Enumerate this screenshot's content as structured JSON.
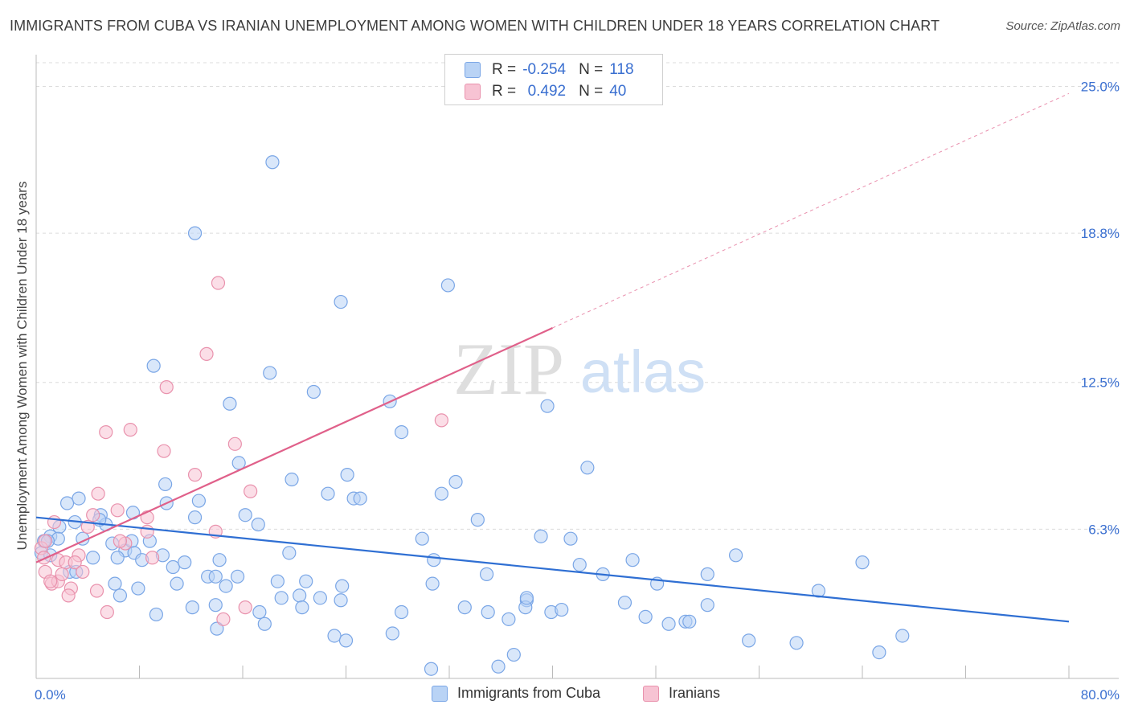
{
  "header": {
    "title": "IMMIGRANTS FROM CUBA VS IRANIAN UNEMPLOYMENT AMONG WOMEN WITH CHILDREN UNDER 18 YEARS CORRELATION CHART",
    "source": "Source: ZipAtlas.com"
  },
  "legend_stats": {
    "row1": {
      "r_label": "R =",
      "r_value": "-0.254",
      "n_label": "N =",
      "n_value": "118"
    },
    "row2": {
      "r_label": "R =",
      "r_value": "0.492",
      "n_label": "N =",
      "n_value": "40"
    }
  },
  "legend_series": {
    "s1": "Immigrants from Cuba",
    "s2": "Iranians"
  },
  "watermark": {
    "zip": "ZIP",
    "atlas": "atlas"
  },
  "colors": {
    "cuba_fill": "#b9d3f5",
    "cuba_stroke": "#7aa6e6",
    "cuba_line": "#2f6fd3",
    "iran_fill": "#f7c3d3",
    "iran_stroke": "#e992ad",
    "iran_line": "#e0608a",
    "tick_label": "#3a6fd0",
    "grid": "#dcdcdc"
  },
  "chart_data": {
    "type": "scatter",
    "title": "IMMIGRANTS FROM CUBA VS IRANIAN UNEMPLOYMENT AMONG WOMEN WITH CHILDREN UNDER 18 YEARS CORRELATION CHART",
    "xlabel": "",
    "ylabel": "Unemployment Among Women with Children Under 18 years",
    "xlim": [
      0,
      80
    ],
    "ylim": [
      0,
      26
    ],
    "x_tick_labels": [
      "0.0%",
      "80.0%"
    ],
    "y_ticks": [
      6.3,
      12.5,
      18.8,
      25.0
    ],
    "y_tick_labels": [
      "6.3%",
      "12.5%",
      "18.8%",
      "25.0%"
    ],
    "grid": "horizontal dashed",
    "legend": "top-center",
    "series": [
      {
        "name": "Immigrants from Cuba",
        "r": -0.254,
        "n": 118,
        "trend": {
          "x": [
            0,
            80
          ],
          "y": [
            6.8,
            2.4
          ]
        },
        "points": [
          [
            18.3,
            21.8
          ],
          [
            12.3,
            18.8
          ],
          [
            23.6,
            15.9
          ],
          [
            31.9,
            16.6
          ],
          [
            9.1,
            13.2
          ],
          [
            18.1,
            12.9
          ],
          [
            21.5,
            12.1
          ],
          [
            15.0,
            11.6
          ],
          [
            27.4,
            11.7
          ],
          [
            39.6,
            11.5
          ],
          [
            28.3,
            10.4
          ],
          [
            15.7,
            9.1
          ],
          [
            19.8,
            8.4
          ],
          [
            24.1,
            8.6
          ],
          [
            32.5,
            8.3
          ],
          [
            42.7,
            8.9
          ],
          [
            10.0,
            8.2
          ],
          [
            22.6,
            7.8
          ],
          [
            24.6,
            7.6
          ],
          [
            31.4,
            7.8
          ],
          [
            3.3,
            7.6
          ],
          [
            2.4,
            7.4
          ],
          [
            10.1,
            7.4
          ],
          [
            12.6,
            7.5
          ],
          [
            7.5,
            7.0
          ],
          [
            5.0,
            6.9
          ],
          [
            5.4,
            6.5
          ],
          [
            4.9,
            6.7
          ],
          [
            3.0,
            6.6
          ],
          [
            1.8,
            6.4
          ],
          [
            12.3,
            6.8
          ],
          [
            16.2,
            6.9
          ],
          [
            34.2,
            6.7
          ],
          [
            17.2,
            6.5
          ],
          [
            1.1,
            6.0
          ],
          [
            0.6,
            5.8
          ],
          [
            1.7,
            5.9
          ],
          [
            3.6,
            5.9
          ],
          [
            5.9,
            5.7
          ],
          [
            6.9,
            5.4
          ],
          [
            7.4,
            5.8
          ],
          [
            8.8,
            5.8
          ],
          [
            7.6,
            5.3
          ],
          [
            0.4,
            5.3
          ],
          [
            1.1,
            5.2
          ],
          [
            4.4,
            5.1
          ],
          [
            6.3,
            5.1
          ],
          [
            8.2,
            5.0
          ],
          [
            9.8,
            5.2
          ],
          [
            10.6,
            4.7
          ],
          [
            11.5,
            4.9
          ],
          [
            14.2,
            5.0
          ],
          [
            19.6,
            5.3
          ],
          [
            29.9,
            5.9
          ],
          [
            30.8,
            5.0
          ],
          [
            39.1,
            6.0
          ],
          [
            41.4,
            5.9
          ],
          [
            42.1,
            4.8
          ],
          [
            46.2,
            5.0
          ],
          [
            54.2,
            5.2
          ],
          [
            64.0,
            4.9
          ],
          [
            2.6,
            4.5
          ],
          [
            3.1,
            4.5
          ],
          [
            6.1,
            4.0
          ],
          [
            7.9,
            3.8
          ],
          [
            6.5,
            3.5
          ],
          [
            10.9,
            4.0
          ],
          [
            13.3,
            4.3
          ],
          [
            13.9,
            4.3
          ],
          [
            14.7,
            3.9
          ],
          [
            15.6,
            4.3
          ],
          [
            18.7,
            4.1
          ],
          [
            20.9,
            4.1
          ],
          [
            23.7,
            3.9
          ],
          [
            30.7,
            4.0
          ],
          [
            34.9,
            4.4
          ],
          [
            43.9,
            4.4
          ],
          [
            48.1,
            4.0
          ],
          [
            52.0,
            4.4
          ],
          [
            60.6,
            3.7
          ],
          [
            19.0,
            3.4
          ],
          [
            20.4,
            3.5
          ],
          [
            22.0,
            3.4
          ],
          [
            23.6,
            3.3
          ],
          [
            38.0,
            3.3
          ],
          [
            12.1,
            3.0
          ],
          [
            13.9,
            3.1
          ],
          [
            17.3,
            2.8
          ],
          [
            20.6,
            3.0
          ],
          [
            28.3,
            2.8
          ],
          [
            33.2,
            3.0
          ],
          [
            35.0,
            2.8
          ],
          [
            36.6,
            2.5
          ],
          [
            37.9,
            3.0
          ],
          [
            39.9,
            2.8
          ],
          [
            40.7,
            2.9
          ],
          [
            45.6,
            3.2
          ],
          [
            47.2,
            2.6
          ],
          [
            49.0,
            2.3
          ],
          [
            52.0,
            3.1
          ],
          [
            9.3,
            2.7
          ],
          [
            14.0,
            2.1
          ],
          [
            17.7,
            2.3
          ],
          [
            27.6,
            1.9
          ],
          [
            23.1,
            1.8
          ],
          [
            24.0,
            1.6
          ],
          [
            50.3,
            2.4
          ],
          [
            50.6,
            2.4
          ],
          [
            55.2,
            1.6
          ],
          [
            58.9,
            1.5
          ],
          [
            67.1,
            1.8
          ],
          [
            65.3,
            1.1
          ],
          [
            38.0,
            3.4
          ],
          [
            30.6,
            0.4
          ],
          [
            37.0,
            1.0
          ],
          [
            35.8,
            0.5
          ],
          [
            25.1,
            7.6
          ],
          [
            0.9,
            5.8
          ]
        ]
      },
      {
        "name": "Iranians",
        "r": 0.492,
        "n": 40,
        "trend_solid": {
          "x": [
            0,
            40
          ],
          "y": [
            4.9,
            14.8
          ]
        },
        "trend_dashed": {
          "x": [
            40,
            80
          ],
          "y": [
            14.8,
            24.7
          ]
        },
        "points": [
          [
            14.1,
            16.7
          ],
          [
            13.2,
            13.7
          ],
          [
            10.1,
            12.3
          ],
          [
            31.4,
            10.9
          ],
          [
            7.3,
            10.5
          ],
          [
            5.4,
            10.4
          ],
          [
            15.4,
            9.9
          ],
          [
            9.9,
            9.6
          ],
          [
            12.3,
            8.6
          ],
          [
            16.6,
            7.9
          ],
          [
            4.8,
            7.8
          ],
          [
            6.3,
            7.1
          ],
          [
            8.6,
            6.8
          ],
          [
            1.4,
            6.6
          ],
          [
            4.4,
            6.9
          ],
          [
            4.0,
            6.4
          ],
          [
            13.9,
            6.2
          ],
          [
            8.6,
            6.2
          ],
          [
            6.9,
            5.7
          ],
          [
            6.5,
            5.8
          ],
          [
            0.4,
            5.5
          ],
          [
            0.7,
            5.8
          ],
          [
            3.3,
            5.2
          ],
          [
            1.7,
            5.0
          ],
          [
            9.0,
            5.1
          ],
          [
            2.3,
            4.9
          ],
          [
            3.0,
            4.9
          ],
          [
            0.6,
            5.1
          ],
          [
            0.7,
            4.5
          ],
          [
            1.2,
            4.0
          ],
          [
            1.7,
            4.1
          ],
          [
            2.0,
            4.4
          ],
          [
            3.6,
            4.5
          ],
          [
            2.7,
            3.8
          ],
          [
            4.7,
            3.7
          ],
          [
            2.5,
            3.5
          ],
          [
            16.2,
            3.0
          ],
          [
            14.5,
            2.5
          ],
          [
            5.5,
            2.8
          ],
          [
            1.1,
            4.1
          ]
        ]
      }
    ]
  }
}
